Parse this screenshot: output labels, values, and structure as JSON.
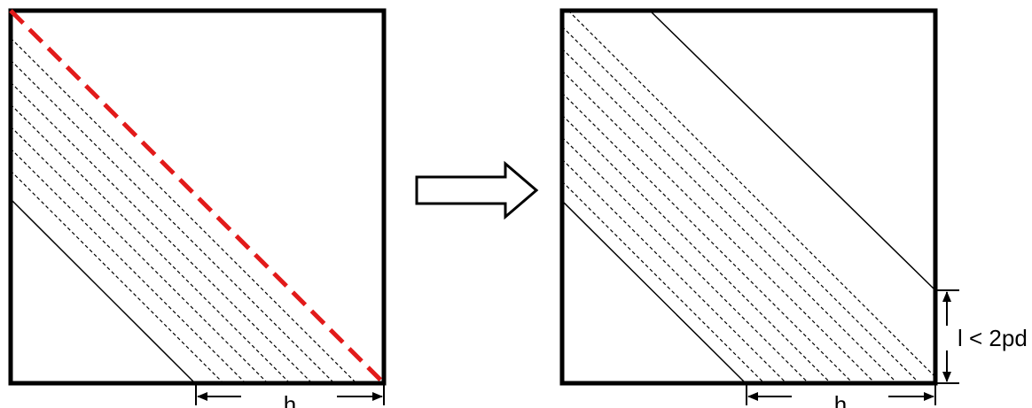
{
  "left_panel": {
    "width_label": "h"
  },
  "right_panel": {
    "width_label": "h",
    "height_label": "l < 2pd"
  },
  "colors": {
    "stroke": "#000000",
    "highlight_diagonal": "#e21a1a"
  }
}
